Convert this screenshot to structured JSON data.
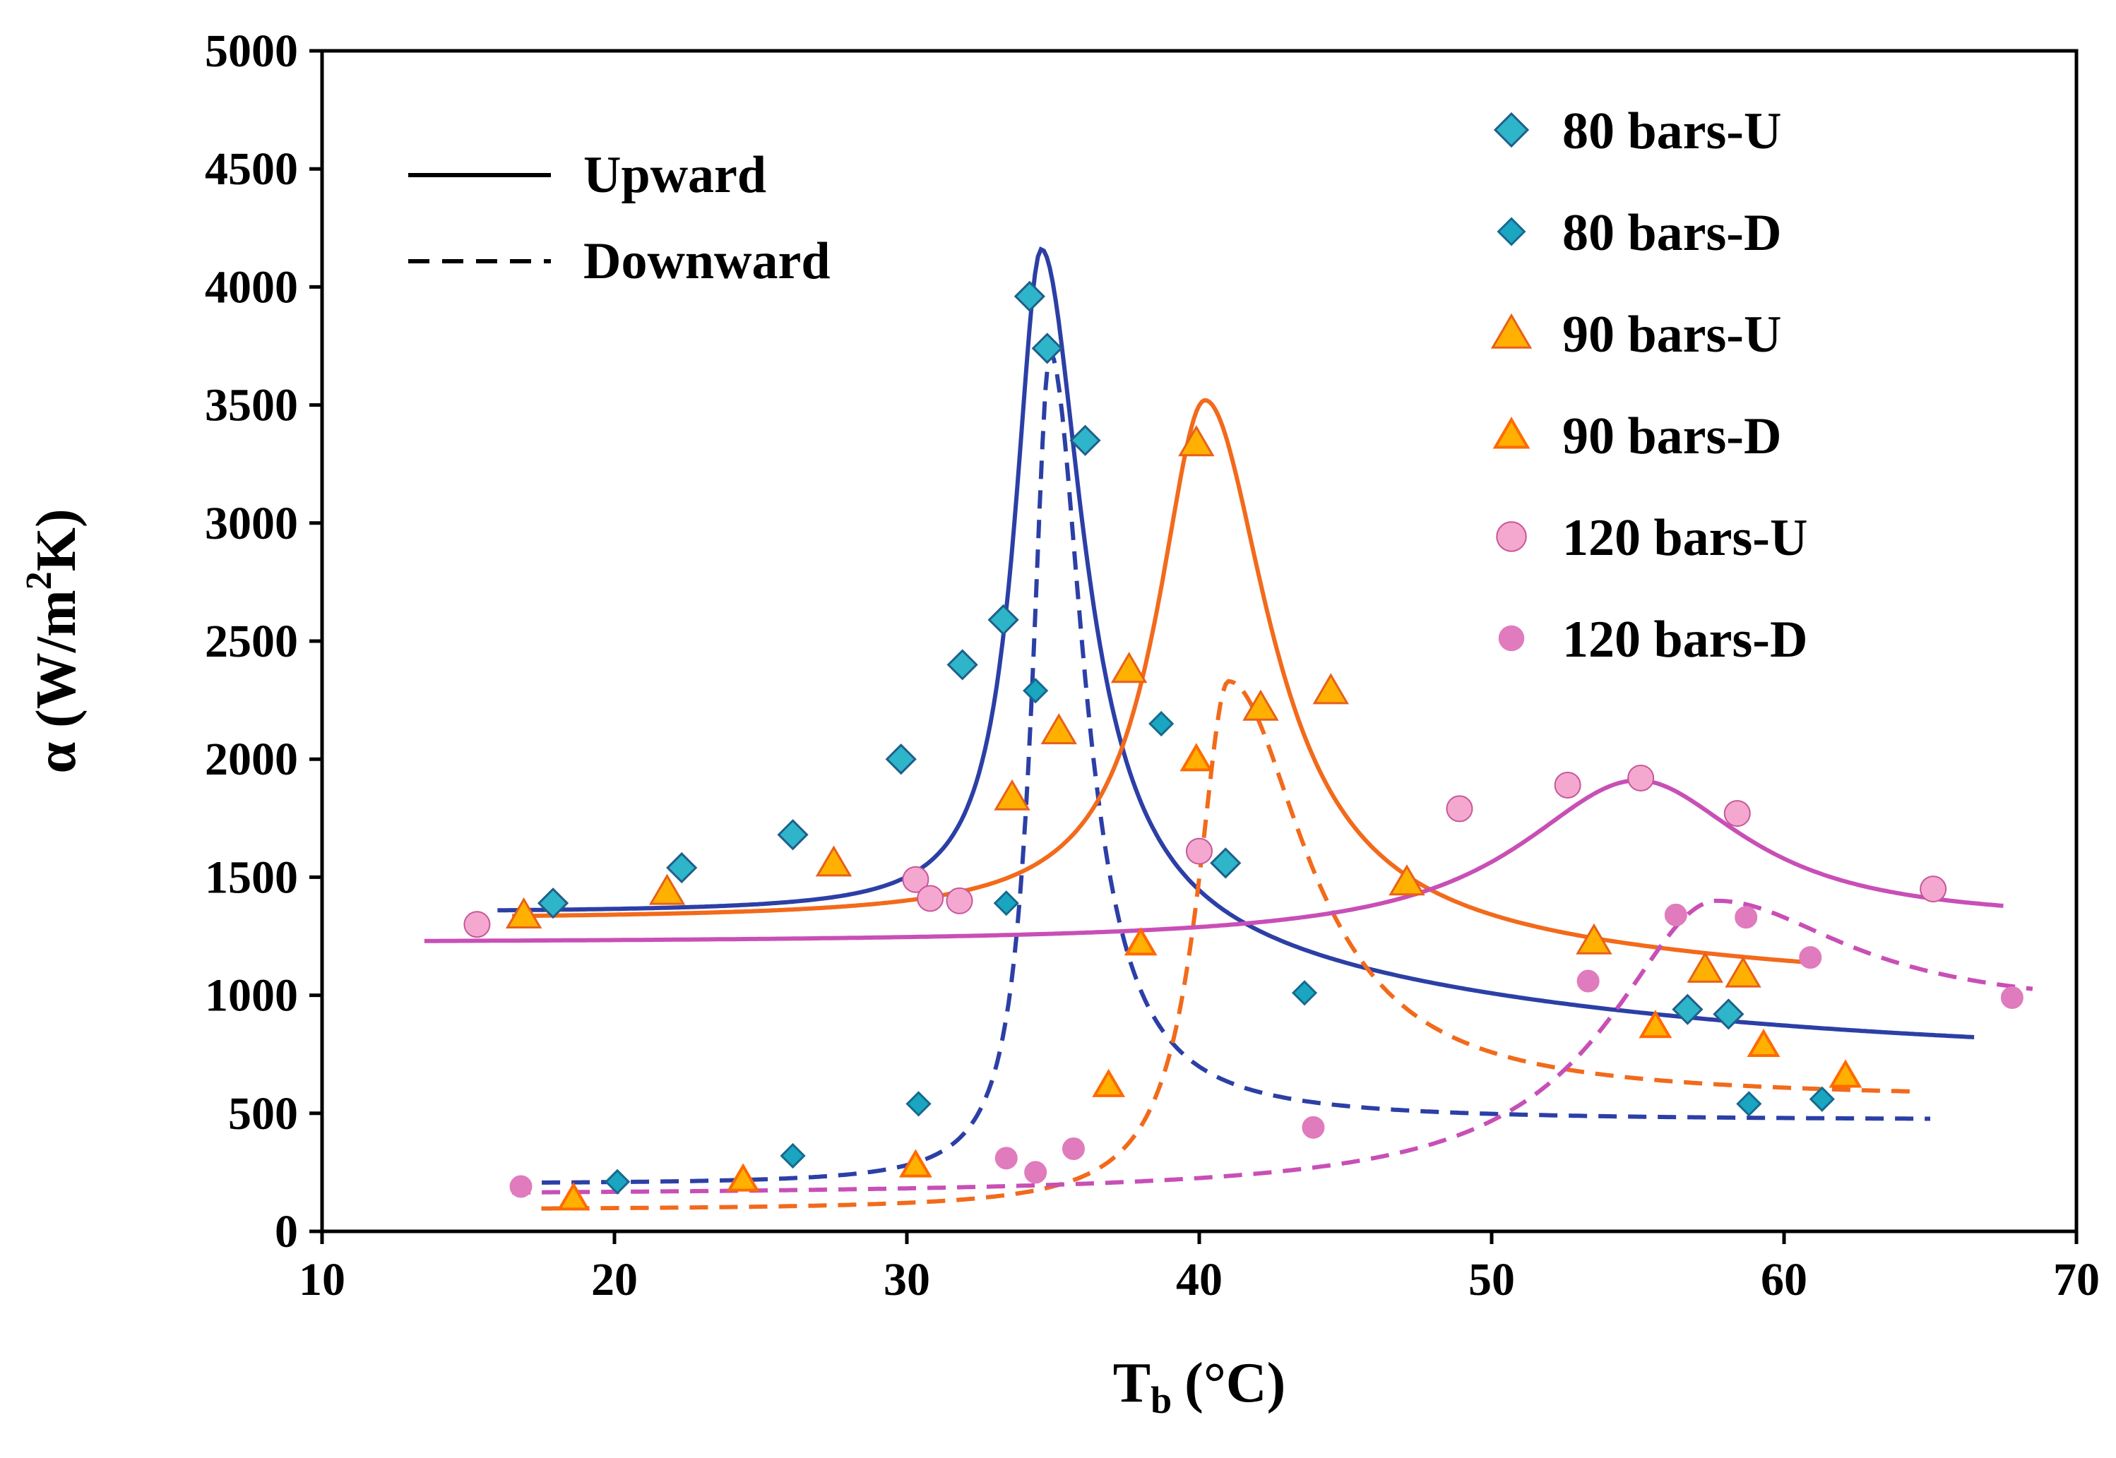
{
  "chart_data": {
    "type": "scatter",
    "title": "",
    "xlabel": "T",
    "xlabel_sub": "b",
    "xlabel_unit": "(°C)",
    "ylabel": "α (W/m",
    "ylabel_sup": "2",
    "ylabel_end": "K)",
    "xlim": [
      10,
      70
    ],
    "ylim": [
      0,
      5000
    ],
    "xticks": [
      "10",
      "20",
      "30",
      "40",
      "50",
      "60",
      "70"
    ],
    "yticks": [
      "0",
      "500",
      "1000",
      "1500",
      "2000",
      "2500",
      "3000",
      "3500",
      "4000",
      "4500",
      "5000"
    ],
    "xtick_values": [
      10,
      20,
      30,
      40,
      50,
      60,
      70
    ],
    "ytick_values": [
      0,
      500,
      1000,
      1500,
      2000,
      2500,
      3000,
      3500,
      4000,
      4500,
      5000
    ],
    "line_legend": [
      {
        "label": "Upward",
        "style": "solid"
      },
      {
        "label": "Downward",
        "style": "dashed"
      }
    ],
    "series": [
      {
        "name": "80 bars-U",
        "marker": "diamond",
        "fill": "#2eb5c9",
        "stroke": "#1f5f8a",
        "points": [
          [
            17.9,
            1390
          ],
          [
            22.3,
            1540
          ],
          [
            26.1,
            1680
          ],
          [
            29.8,
            2000
          ],
          [
            31.9,
            2400
          ],
          [
            33.3,
            2590
          ],
          [
            34.2,
            3960
          ],
          [
            34.8,
            3740
          ],
          [
            36.1,
            3350
          ],
          [
            40.9,
            1560
          ],
          [
            56.7,
            940
          ],
          [
            58.1,
            920
          ]
        ]
      },
      {
        "name": "80 bars-D",
        "marker": "diamond-small",
        "fill": "#1aa6c0",
        "stroke": "#166a8e",
        "points": [
          [
            20.1,
            210
          ],
          [
            26.1,
            320
          ],
          [
            30.4,
            540
          ],
          [
            33.4,
            1390
          ],
          [
            34.4,
            2290
          ],
          [
            38.7,
            2150
          ],
          [
            43.6,
            1010
          ],
          [
            58.8,
            540
          ],
          [
            61.3,
            560
          ]
        ]
      },
      {
        "name": "90 bars-U",
        "marker": "triangle",
        "fill": "#ffb000",
        "stroke": "#e8601a",
        "points": [
          [
            16.9,
            1340
          ],
          [
            21.8,
            1440
          ],
          [
            27.5,
            1560
          ],
          [
            33.6,
            1840
          ],
          [
            35.2,
            2120
          ],
          [
            37.6,
            2380
          ],
          [
            39.9,
            3340
          ],
          [
            42.1,
            2220
          ],
          [
            44.5,
            2290
          ],
          [
            47.1,
            1480
          ],
          [
            53.5,
            1230
          ],
          [
            57.3,
            1110
          ],
          [
            58.6,
            1090
          ]
        ]
      },
      {
        "name": "90 bars-D",
        "marker": "triangle-small",
        "fill": "#ffb000",
        "stroke": "#ff6a00",
        "points": [
          [
            18.6,
            140
          ],
          [
            24.4,
            220
          ],
          [
            30.3,
            280
          ],
          [
            36.9,
            620
          ],
          [
            38.0,
            1220
          ],
          [
            39.9,
            2000
          ],
          [
            55.6,
            870
          ],
          [
            59.3,
            790
          ],
          [
            62.1,
            660
          ]
        ]
      },
      {
        "name": "120 bars-U",
        "marker": "circle",
        "fill": "#f4a8cf",
        "stroke": "#c8569a",
        "points": [
          [
            15.3,
            1300
          ],
          [
            30.3,
            1490
          ],
          [
            30.8,
            1410
          ],
          [
            31.8,
            1400
          ],
          [
            40.0,
            1610
          ],
          [
            48.9,
            1790
          ],
          [
            52.6,
            1890
          ],
          [
            55.1,
            1920
          ],
          [
            58.4,
            1770
          ],
          [
            65.1,
            1450
          ]
        ]
      },
      {
        "name": "120 bars-D",
        "marker": "circle-small",
        "fill": "#e07bbd",
        "stroke": "#e07bbd",
        "points": [
          [
            16.8,
            190
          ],
          [
            33.4,
            310
          ],
          [
            34.4,
            250
          ],
          [
            35.7,
            350
          ],
          [
            43.9,
            440
          ],
          [
            53.3,
            1060
          ],
          [
            56.3,
            1340
          ],
          [
            58.7,
            1330
          ],
          [
            60.9,
            1160
          ],
          [
            67.8,
            990
          ]
        ]
      }
    ],
    "curves": [
      {
        "name": "80 bars upward fit",
        "style": "solid",
        "color": "#2c3fa6",
        "center": 34.6,
        "peak": 4160,
        "base_left": 1350,
        "base_right": 720,
        "width_left": 1.1,
        "width_right": 1.7,
        "decay": 0.06,
        "x_range": [
          16,
          66.5
        ]
      },
      {
        "name": "80 bars downward fit",
        "style": "dashed",
        "color": "#2c3fa6",
        "center": 34.9,
        "peak": 3720,
        "base_left": 200,
        "base_right": 470,
        "width_left": 0.75,
        "width_right": 1.4,
        "decay": 0.055,
        "x_range": [
          16.5,
          65
        ]
      },
      {
        "name": "90 bars upward fit",
        "style": "solid",
        "color": "#f26a1b",
        "center": 40.2,
        "peak": 3520,
        "base_left": 1320,
        "base_right": 980,
        "width_left": 2.0,
        "width_right": 2.6,
        "decay": 0.05,
        "x_range": [
          16.5,
          61
        ]
      },
      {
        "name": "90 bars downward fit",
        "style": "dashed",
        "color": "#f26a1b",
        "center": 41.0,
        "peak": 2330,
        "base_left": 90,
        "base_right": 560,
        "width_left": 1.3,
        "width_right": 3.2,
        "decay": 0.04,
        "x_range": [
          17.5,
          64.5
        ]
      },
      {
        "name": "120 bars upward fit",
        "style": "solid",
        "color": "#c84fb6",
        "center": 55.0,
        "peak": 1910,
        "base_left": 1220,
        "base_right": 1310,
        "width_left": 5.0,
        "width_right": 4.5,
        "decay": 0.03,
        "x_range": [
          13.5,
          67.5
        ]
      },
      {
        "name": "120 bars downward fit",
        "style": "dashed",
        "color": "#c84fb6",
        "center": 57.7,
        "peak": 1400,
        "base_left": 150,
        "base_right": 930,
        "width_left": 4.5,
        "width_right": 5.5,
        "decay": 0.03,
        "x_range": [
          16.5,
          68.5
        ]
      }
    ]
  }
}
